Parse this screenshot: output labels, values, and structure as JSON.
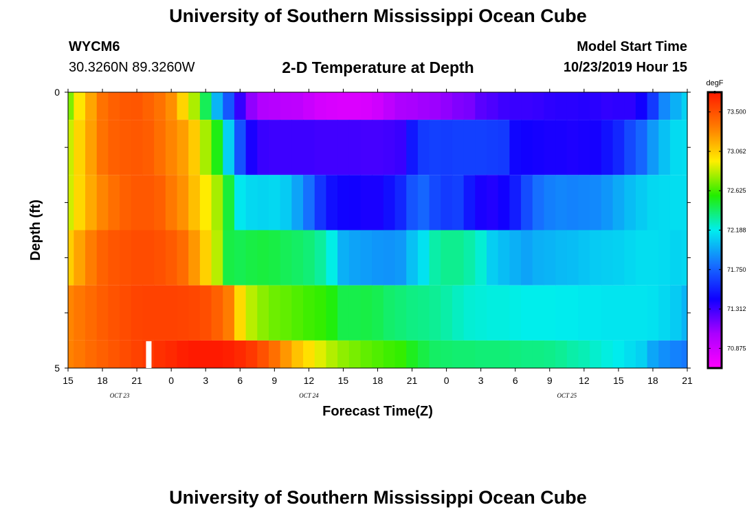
{
  "header": {
    "title": "University of Southern Mississippi Ocean Cube",
    "station_id": "WYCM6",
    "station_coords": "30.3260N 89.3260W",
    "subtitle": "2-D Temperature at Depth",
    "model_start_label": "Model Start Time",
    "model_start_value": "10/23/2019 Hour 15"
  },
  "footer": {
    "title": "University of Southern Mississippi Ocean Cube"
  },
  "chart_data": {
    "type": "heatmap",
    "title": "2-D Temperature at Depth",
    "xlabel": "Forecast Time(Z)",
    "ylabel": "Depth (ft)",
    "x_tick_labels": [
      "15",
      "18",
      "21",
      "0",
      "3",
      "6",
      "9",
      "12",
      "15",
      "18",
      "21",
      "0",
      "3",
      "6",
      "9",
      "12",
      "15",
      "18",
      "21"
    ],
    "x_range_hours": [
      0,
      54
    ],
    "date_labels": [
      {
        "text": "OCT 23",
        "hour": 4.5
      },
      {
        "text": "OCT 24",
        "hour": 21
      },
      {
        "text": "OCT 25",
        "hour": 43.5
      }
    ],
    "y_tick_labels": [
      "0",
      "5"
    ],
    "ylim": [
      0,
      5
    ],
    "y_inverted": true,
    "colorbar": {
      "unit": "degF",
      "tick_labels": [
        "73.500",
        "73.062",
        "72.625",
        "72.188",
        "71.750",
        "71.312",
        "70.875"
      ],
      "min": 70.656,
      "max": 73.719,
      "colors_high_to_low": [
        "#ff1a00",
        "#ff7a00",
        "#ffee00",
        "#22ee00",
        "#00eeee",
        "#1670ff",
        "#1000ff",
        "#aa00ff",
        "#ff00ff"
      ]
    },
    "times_hours": [
      0,
      1,
      2,
      3,
      4,
      5,
      6,
      7,
      8,
      9,
      10,
      11,
      12,
      13,
      14,
      15,
      16,
      17,
      18,
      19,
      20,
      21,
      22,
      23,
      24,
      25,
      26,
      27,
      28,
      29,
      30,
      31,
      32,
      33,
      34,
      35,
      36,
      37,
      38,
      39,
      40,
      41,
      42,
      43,
      44,
      45,
      46,
      47,
      48,
      49,
      50,
      51,
      52,
      53,
      54
    ],
    "rows": [
      {
        "depth_ft": [
          0.0,
          0.5
        ],
        "temps_degF": [
          72.73,
          72.98,
          73.19,
          73.37,
          73.44,
          73.47,
          73.48,
          73.43,
          73.37,
          73.27,
          73.04,
          72.81,
          72.43,
          72.01,
          71.72,
          71.33,
          71.1,
          71.0,
          70.98,
          70.96,
          70.95,
          70.9,
          70.85,
          70.83,
          70.82,
          70.82,
          70.83,
          70.87,
          70.95,
          71.02,
          71.04,
          71.06,
          71.07,
          71.1,
          71.14,
          71.16,
          71.24,
          71.27,
          71.31,
          71.32,
          71.32,
          71.33,
          71.35,
          71.36,
          71.36,
          71.37,
          71.36,
          71.34,
          71.35,
          71.35,
          71.42,
          71.62,
          71.88,
          72.0,
          72.1
        ]
      },
      {
        "depth_ft": [
          0.5,
          1.5
        ],
        "temps_degF": [
          72.86,
          73.04,
          73.21,
          73.37,
          73.44,
          73.46,
          73.47,
          73.45,
          73.38,
          73.3,
          73.22,
          73.07,
          72.8,
          72.54,
          72.1,
          71.7,
          71.4,
          71.32,
          71.31,
          71.31,
          71.31,
          71.31,
          71.3,
          71.3,
          71.3,
          71.3,
          71.29,
          71.29,
          71.3,
          71.32,
          71.5,
          71.62,
          71.64,
          71.63,
          71.64,
          71.64,
          71.64,
          71.63,
          71.62,
          71.44,
          71.42,
          71.41,
          71.4,
          71.4,
          71.39,
          71.4,
          71.41,
          71.48,
          71.55,
          71.67,
          71.77,
          71.93,
          72.05,
          72.13,
          72.14
        ]
      },
      {
        "depth_ft": [
          1.5,
          2.5
        ],
        "temps_degF": [
          72.87,
          73.03,
          73.18,
          73.3,
          73.38,
          73.44,
          73.47,
          73.47,
          73.44,
          73.34,
          73.26,
          73.11,
          72.96,
          72.8,
          72.48,
          72.17,
          72.12,
          72.11,
          72.12,
          72.08,
          71.96,
          71.8,
          71.6,
          71.47,
          71.43,
          71.42,
          71.4,
          71.4,
          71.47,
          71.55,
          71.71,
          71.77,
          71.67,
          71.62,
          71.64,
          71.5,
          71.4,
          71.38,
          71.42,
          71.52,
          71.68,
          71.8,
          71.85,
          71.87,
          71.86,
          71.87,
          71.88,
          71.92,
          71.98,
          72.04,
          72.08,
          72.12,
          72.13,
          72.14,
          72.14
        ]
      },
      {
        "depth_ft": [
          2.5,
          3.5
        ],
        "temps_degF": [
          73.06,
          73.2,
          73.33,
          73.43,
          73.48,
          73.5,
          73.52,
          73.52,
          73.5,
          73.46,
          73.39,
          73.24,
          73.05,
          72.83,
          72.46,
          72.44,
          72.46,
          72.47,
          72.46,
          72.43,
          72.41,
          72.38,
          72.32,
          72.2,
          72.0,
          71.96,
          71.94,
          71.92,
          71.91,
          71.93,
          72.05,
          72.15,
          72.3,
          72.34,
          72.34,
          72.3,
          72.23,
          72.09,
          72.04,
          72.0,
          71.96,
          72.0,
          72.01,
          72.03,
          72.04,
          72.06,
          72.08,
          72.09,
          72.1,
          72.12,
          72.14,
          72.14,
          72.13,
          72.11,
          72.12
        ]
      },
      {
        "depth_ft": [
          3.5,
          4.5
        ],
        "temps_degF": [
          73.3,
          73.35,
          73.4,
          73.45,
          73.49,
          73.52,
          73.55,
          73.56,
          73.56,
          73.56,
          73.55,
          73.54,
          73.51,
          73.44,
          73.33,
          73.02,
          72.83,
          72.75,
          72.7,
          72.68,
          72.65,
          72.62,
          72.6,
          72.55,
          72.45,
          72.45,
          72.46,
          72.44,
          72.4,
          72.38,
          72.36,
          72.35,
          72.33,
          72.3,
          72.26,
          72.23,
          72.22,
          72.21,
          72.21,
          72.2,
          72.19,
          72.19,
          72.19,
          72.18,
          72.18,
          72.17,
          72.17,
          72.16,
          72.16,
          72.16,
          72.16,
          72.15,
          72.12,
          72.08,
          72.01
        ]
      },
      {
        "depth_ft": [
          4.5,
          5.0
        ],
        "temps_degF": [
          73.31,
          73.35,
          73.4,
          73.44,
          73.48,
          73.52,
          73.56,
          73.59,
          73.63,
          73.66,
          73.7,
          73.73,
          73.74,
          73.74,
          73.7,
          73.66,
          73.6,
          73.5,
          73.38,
          73.24,
          73.1,
          73.0,
          72.9,
          72.82,
          72.76,
          72.72,
          72.68,
          72.65,
          72.62,
          72.6,
          72.52,
          72.46,
          72.41,
          72.4,
          72.39,
          72.39,
          72.38,
          72.38,
          72.38,
          72.37,
          72.36,
          72.36,
          72.35,
          72.33,
          72.3,
          72.28,
          72.24,
          72.21,
          72.18,
          72.14,
          72.1,
          71.97,
          71.9,
          71.86,
          71.83
        ]
      }
    ]
  }
}
